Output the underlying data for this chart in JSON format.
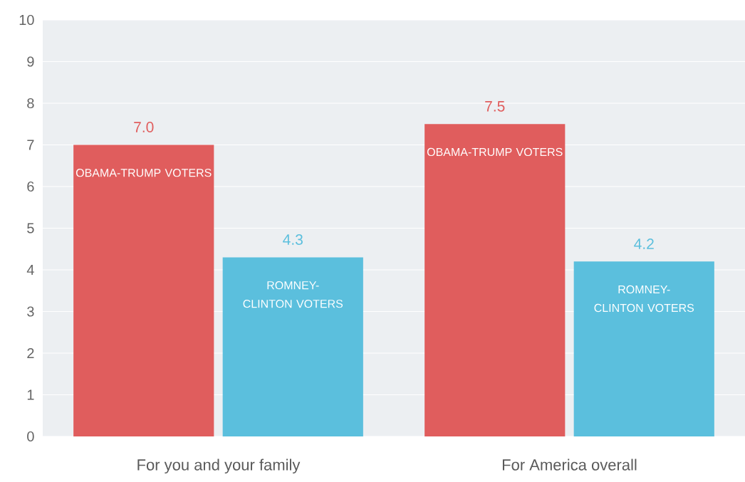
{
  "chart_data": {
    "type": "bar",
    "categories": [
      "For you and your family",
      "For America overall"
    ],
    "series": [
      {
        "name": "OBAMA-TRUMP VOTERS",
        "color": "#e05d5d",
        "values": [
          7.0,
          7.5
        ],
        "value_labels": [
          "7.0",
          "7.5"
        ]
      },
      {
        "name": "ROMNEY-CLINTON VOTERS",
        "color": "#5bbfdd",
        "values": [
          4.3,
          4.2
        ],
        "value_labels": [
          "4.3",
          "4.2"
        ]
      }
    ],
    "ylim": [
      0,
      10
    ],
    "yticks": [
      0,
      1,
      2,
      3,
      4,
      5,
      6,
      7,
      8,
      9,
      10
    ],
    "grid": "y"
  }
}
